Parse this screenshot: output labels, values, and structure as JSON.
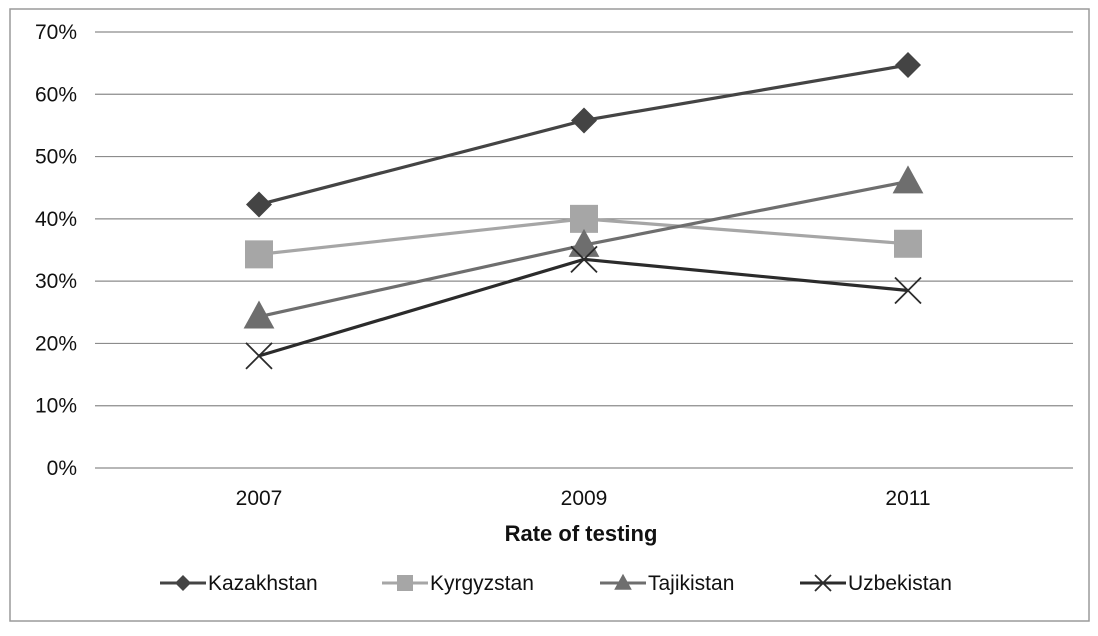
{
  "chart_data": {
    "type": "line",
    "title": "",
    "xlabel": "Rate of testing",
    "ylabel": "",
    "categories": [
      "2007",
      "2009",
      "2011"
    ],
    "ylim": [
      0,
      70
    ],
    "ytick_step": 10,
    "ytick_labels": [
      "0%",
      "10%",
      "20%",
      "30%",
      "40%",
      "50%",
      "60%",
      "70%"
    ],
    "grid": true,
    "legend_position": "bottom",
    "series": [
      {
        "name": "Kazakhstan",
        "values": [
          42.3,
          55.8,
          64.7
        ],
        "color": "#444444",
        "marker": "diamond"
      },
      {
        "name": "Kyrgyzstan",
        "values": [
          34.3,
          40.0,
          36.0
        ],
        "color": "#a6a6a6",
        "marker": "square"
      },
      {
        "name": "Tajikistan",
        "values": [
          24.3,
          35.8,
          46.0
        ],
        "color": "#6e6e6e",
        "marker": "triangle"
      },
      {
        "name": "Uzbekistan",
        "values": [
          18.0,
          33.5,
          28.5
        ],
        "color": "#2b2b2b",
        "marker": "x"
      }
    ]
  }
}
